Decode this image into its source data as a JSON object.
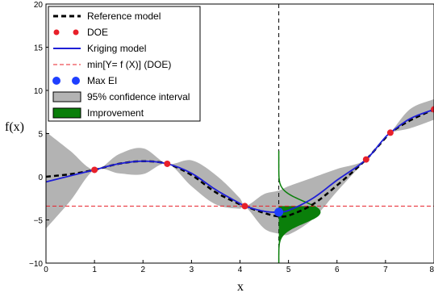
{
  "chart_data": {
    "type": "line",
    "xlabel": "x",
    "ylabel": "f(x)",
    "xlim": [
      0,
      8
    ],
    "ylim": [
      -10,
      20
    ],
    "xticks": [
      0,
      1,
      2,
      3,
      4,
      5,
      6,
      7,
      8
    ],
    "yticks": [
      -10,
      -5,
      0,
      5,
      10,
      15,
      20
    ],
    "grid": false,
    "legend_position": "top-left",
    "legend": [
      {
        "label": "Reference model",
        "style": "dashed-line",
        "color": "#000000"
      },
      {
        "label": "DOE",
        "style": "dots",
        "color": "#e8202a"
      },
      {
        "label": "Kriging model",
        "style": "solid-line",
        "color": "#1f1fd6"
      },
      {
        "label": "min[Y= f (X)] (DOE)",
        "style": "dashed-line",
        "color": "#e8202a"
      },
      {
        "label": "Max EI",
        "style": "dots",
        "color": "#1f3fff"
      },
      {
        "label": "95% confidence interval",
        "style": "patch",
        "color": "#b3b3b3"
      },
      {
        "label": "Improvement",
        "style": "patch",
        "color": "#0a7f0a"
      }
    ],
    "reference_model": {
      "x": [
        0,
        0.5,
        1,
        1.5,
        2,
        2.5,
        3,
        3.5,
        4,
        4.1,
        4.5,
        4.8,
        5,
        5.5,
        6,
        6.6,
        7,
        7.1,
        7.5,
        8
      ],
      "y": [
        0,
        0.3,
        0.8,
        1.5,
        1.8,
        1.5,
        0.2,
        -1.8,
        -3.2,
        -3.4,
        -4.2,
        -4.6,
        -4.5,
        -3.2,
        -1.0,
        2.0,
        4.5,
        5.1,
        6.5,
        7.8
      ]
    },
    "kriging_model": {
      "x": [
        0,
        0.5,
        1,
        1.5,
        2,
        2.5,
        3,
        3.5,
        4,
        4.1,
        4.5,
        4.8,
        5,
        5.5,
        6,
        6.6,
        7,
        7.1,
        7.5,
        8
      ],
      "y": [
        -0.6,
        0.1,
        0.8,
        1.5,
        1.8,
        1.5,
        0.4,
        -1.5,
        -3.1,
        -3.4,
        -4.0,
        -4.1,
        -3.9,
        -2.5,
        -0.4,
        2.0,
        4.6,
        5.1,
        6.7,
        7.8
      ]
    },
    "confidence_interval": {
      "x": [
        0,
        0.5,
        1,
        1.5,
        2,
        2.5,
        3,
        3.5,
        4,
        4.1,
        4.5,
        4.8,
        5,
        5.5,
        6,
        6.6,
        7,
        7.1,
        7.5,
        8
      ],
      "upper": [
        5.2,
        3.0,
        0.8,
        2.6,
        3.3,
        1.5,
        1.9,
        0.2,
        -2.5,
        -3.4,
        -2.0,
        -1.6,
        -1.1,
        -0.1,
        0.9,
        2.0,
        4.6,
        5.1,
        7.8,
        9.0
      ],
      "lower": [
        -6.0,
        -2.8,
        0.8,
        0.4,
        0.3,
        1.5,
        -1.1,
        -3.2,
        -3.7,
        -3.4,
        -6.0,
        -6.6,
        -6.7,
        -4.9,
        -1.7,
        2.0,
        4.6,
        5.1,
        5.6,
        6.6
      ]
    },
    "doe_points": {
      "x": [
        1,
        2.5,
        4.1,
        6.6,
        7.1,
        8
      ],
      "y": [
        0.8,
        1.5,
        -3.4,
        2.0,
        5.1,
        7.8
      ]
    },
    "min_doe_level": -3.4,
    "max_ei_point": {
      "x": 4.8,
      "y": -4.1
    },
    "max_ei_vertical_line_x": 4.8,
    "improvement_density": {
      "center_x": 4.8,
      "mean_y": -4.1,
      "sigma_y": 1.25,
      "peak_width_x": 0.85
    }
  }
}
